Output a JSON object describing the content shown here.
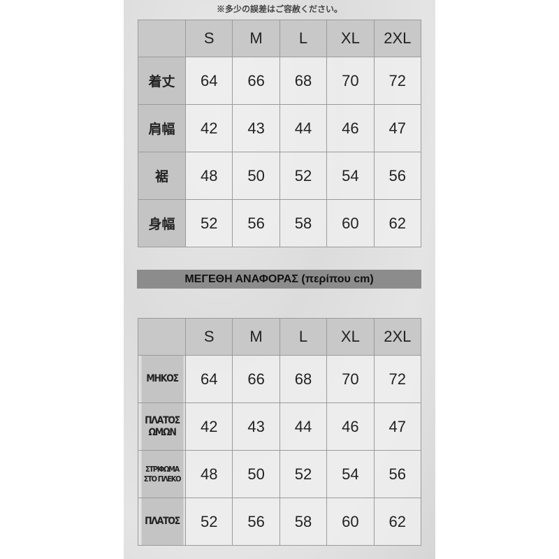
{
  "note": "※多少の誤差はご容赦ください。",
  "sizes": [
    "S",
    "M",
    "L",
    "XL",
    "2XL"
  ],
  "table_jp": {
    "rows": [
      {
        "label": "着丈",
        "values": [
          "64",
          "66",
          "68",
          "70",
          "72"
        ]
      },
      {
        "label": "肩幅",
        "values": [
          "42",
          "43",
          "44",
          "46",
          "47"
        ]
      },
      {
        "label": "裾",
        "values": [
          "48",
          "50",
          "52",
          "54",
          "56"
        ]
      },
      {
        "label": "身幅",
        "values": [
          "52",
          "56",
          "58",
          "60",
          "62"
        ]
      }
    ]
  },
  "banner": "ΜΕΓΕΘΗ ΑΝΑΦΟΡΑΣ (περίπου cm)",
  "table_gr": {
    "rows": [
      {
        "label": "ΜΗΚΟΣ",
        "values": [
          "64",
          "66",
          "68",
          "70",
          "72"
        ]
      },
      {
        "label": "ΠΛΑΤΟΣ ΩΜΩΝ",
        "values": [
          "42",
          "43",
          "44",
          "46",
          "47"
        ]
      },
      {
        "label": "ΣΤΡΙΦΩΜΑ ΣΤΟ ΓΙΛΕΚΟ",
        "values": [
          "48",
          "50",
          "52",
          "54",
          "56"
        ]
      },
      {
        "label": "ΠΛΑΤΟΣ",
        "values": [
          "52",
          "56",
          "58",
          "60",
          "62"
        ]
      }
    ]
  }
}
